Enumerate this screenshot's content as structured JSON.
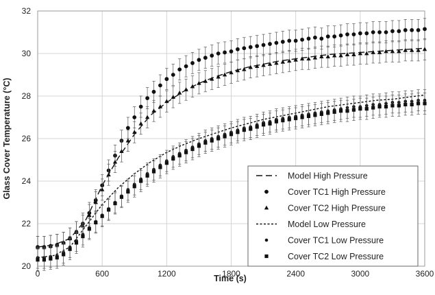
{
  "chart_data": {
    "type": "scatter",
    "xlabel": "Time (s)",
    "ylabel": "Glass Cover Temperature (°C)",
    "xlim": [
      0,
      3600
    ],
    "ylim": [
      20,
      32
    ],
    "xticks": [
      0,
      600,
      1200,
      1800,
      2400,
      3000,
      3600
    ],
    "yticks": [
      20,
      22,
      24,
      26,
      28,
      30,
      32
    ],
    "grid": true,
    "legend_position": "bottom-right",
    "error_bar_halfwidth": 0.5,
    "series": [
      {
        "name": "Model High Pressure",
        "style": "long-dash-line",
        "x": [
          0,
          150,
          300,
          450,
          600,
          750,
          900,
          1050,
          1200,
          1350,
          1500,
          1650,
          1800,
          1950,
          2100,
          2250,
          2400,
          2550,
          2700,
          2850,
          3000,
          3150,
          3300,
          3450,
          3600
        ],
        "y": [
          20.9,
          21.0,
          21.3,
          22.2,
          23.8,
          25.1,
          26.2,
          27.1,
          27.7,
          28.2,
          28.6,
          28.9,
          29.15,
          29.35,
          29.5,
          29.65,
          29.75,
          29.85,
          29.95,
          30.0,
          30.05,
          30.1,
          30.15,
          30.2,
          30.25
        ]
      },
      {
        "name": "Cover TC1 High Pressure",
        "style": "circle",
        "x": [
          0,
          60,
          120,
          180,
          240,
          300,
          360,
          420,
          480,
          540,
          600,
          660,
          720,
          780,
          840,
          900,
          960,
          1020,
          1080,
          1140,
          1200,
          1260,
          1320,
          1380,
          1440,
          1500,
          1560,
          1620,
          1680,
          1740,
          1800,
          1860,
          1920,
          1980,
          2040,
          2100,
          2160,
          2220,
          2280,
          2340,
          2400,
          2460,
          2520,
          2580,
          2640,
          2700,
          2760,
          2820,
          2880,
          2940,
          3000,
          3060,
          3120,
          3180,
          3240,
          3300,
          3360,
          3420,
          3480,
          3540,
          3600
        ],
        "y": [
          20.9,
          20.9,
          20.95,
          21.0,
          21.1,
          21.3,
          21.6,
          22.0,
          22.5,
          23.1,
          23.8,
          24.5,
          25.2,
          25.9,
          26.5,
          27.0,
          27.5,
          27.9,
          28.2,
          28.5,
          28.8,
          29.0,
          29.25,
          29.4,
          29.55,
          29.7,
          29.8,
          29.9,
          30.0,
          30.05,
          30.1,
          30.2,
          30.25,
          30.3,
          30.35,
          30.4,
          30.45,
          30.5,
          30.55,
          30.6,
          30.6,
          30.65,
          30.7,
          30.75,
          30.7,
          30.8,
          30.8,
          30.85,
          30.9,
          30.9,
          30.95,
          30.95,
          31.0,
          31.0,
          31.0,
          31.05,
          31.05,
          31.1,
          31.1,
          31.1,
          31.15
        ]
      },
      {
        "name": "Cover TC2 High Pressure",
        "style": "triangle",
        "x": [
          0,
          60,
          120,
          180,
          240,
          300,
          360,
          420,
          480,
          540,
          600,
          660,
          720,
          780,
          840,
          900,
          960,
          1020,
          1080,
          1140,
          1200,
          1260,
          1320,
          1380,
          1440,
          1500,
          1560,
          1620,
          1680,
          1740,
          1800,
          1860,
          1920,
          1980,
          2040,
          2100,
          2160,
          2220,
          2280,
          2340,
          2400,
          2460,
          2520,
          2580,
          2640,
          2700,
          2760,
          2820,
          2880,
          2940,
          3000,
          3060,
          3120,
          3180,
          3240,
          3300,
          3360,
          3420,
          3480,
          3540,
          3600
        ],
        "y": [
          20.9,
          20.9,
          20.95,
          21.0,
          21.1,
          21.3,
          21.6,
          21.9,
          22.4,
          23.0,
          23.6,
          24.3,
          24.9,
          25.4,
          25.9,
          26.3,
          26.7,
          27.0,
          27.3,
          27.5,
          27.75,
          27.95,
          28.15,
          28.3,
          28.45,
          28.6,
          28.7,
          28.8,
          28.9,
          29.0,
          29.1,
          29.2,
          29.25,
          29.35,
          29.4,
          29.45,
          29.5,
          29.55,
          29.6,
          29.65,
          29.7,
          29.75,
          29.75,
          29.8,
          29.85,
          29.85,
          29.9,
          29.9,
          29.95,
          29.95,
          30.0,
          30.0,
          30.05,
          30.05,
          30.1,
          30.1,
          30.1,
          30.15,
          30.15,
          30.15,
          30.2
        ]
      },
      {
        "name": "Model Low Pressure",
        "style": "short-dash-line",
        "x": [
          0,
          150,
          300,
          450,
          600,
          750,
          900,
          1050,
          1200,
          1350,
          1500,
          1650,
          1800,
          1950,
          2100,
          2250,
          2400,
          2550,
          2700,
          2850,
          3000,
          3150,
          3300,
          3450,
          3600
        ],
        "y": [
          20.4,
          20.5,
          20.9,
          21.9,
          22.9,
          23.7,
          24.35,
          24.9,
          25.35,
          25.7,
          26.0,
          26.25,
          26.5,
          26.7,
          26.9,
          27.05,
          27.2,
          27.35,
          27.5,
          27.6,
          27.7,
          27.8,
          27.85,
          27.95,
          28.05
        ]
      },
      {
        "name": "Cover TC1 Low Pressure",
        "style": "small-circle",
        "x": [
          0,
          60,
          120,
          180,
          240,
          300,
          360,
          420,
          480,
          540,
          600,
          660,
          720,
          780,
          840,
          900,
          960,
          1020,
          1080,
          1140,
          1200,
          1260,
          1320,
          1380,
          1440,
          1500,
          1560,
          1620,
          1680,
          1740,
          1800,
          1860,
          1920,
          1980,
          2040,
          2100,
          2160,
          2220,
          2280,
          2340,
          2400,
          2460,
          2520,
          2580,
          2640,
          2700,
          2760,
          2820,
          2880,
          2940,
          3000,
          3060,
          3120,
          3180,
          3240,
          3300,
          3360,
          3420,
          3480,
          3540,
          3600
        ],
        "y": [
          20.4,
          20.4,
          20.45,
          20.5,
          20.65,
          20.9,
          21.2,
          21.5,
          21.8,
          22.1,
          22.4,
          22.7,
          23.0,
          23.3,
          23.6,
          23.85,
          24.1,
          24.35,
          24.55,
          24.75,
          24.95,
          25.15,
          25.3,
          25.45,
          25.6,
          25.75,
          25.9,
          26.0,
          26.1,
          26.2,
          26.3,
          26.4,
          26.5,
          26.55,
          26.65,
          26.75,
          26.8,
          26.9,
          26.95,
          27.0,
          27.05,
          27.1,
          27.15,
          27.2,
          27.25,
          27.3,
          27.35,
          27.4,
          27.45,
          27.5,
          27.5,
          27.55,
          27.6,
          27.6,
          27.65,
          27.7,
          27.7,
          27.75,
          27.75,
          27.8,
          27.8
        ]
      },
      {
        "name": "Cover TC2 Low Pressure",
        "style": "square",
        "x": [
          0,
          60,
          120,
          180,
          240,
          300,
          360,
          420,
          480,
          540,
          600,
          660,
          720,
          780,
          840,
          900,
          960,
          1020,
          1080,
          1140,
          1200,
          1260,
          1320,
          1380,
          1440,
          1500,
          1560,
          1620,
          1680,
          1740,
          1800,
          1860,
          1920,
          1980,
          2040,
          2100,
          2160,
          2220,
          2280,
          2340,
          2400,
          2460,
          2520,
          2580,
          2640,
          2700,
          2760,
          2820,
          2880,
          2940,
          3000,
          3060,
          3120,
          3180,
          3240,
          3300,
          3360,
          3420,
          3480,
          3540,
          3600
        ],
        "y": [
          20.3,
          20.3,
          20.35,
          20.4,
          20.55,
          20.8,
          21.1,
          21.4,
          21.75,
          22.05,
          22.35,
          22.65,
          22.95,
          23.25,
          23.5,
          23.75,
          24.0,
          24.25,
          24.45,
          24.65,
          24.85,
          25.05,
          25.2,
          25.35,
          25.5,
          25.65,
          25.8,
          25.9,
          26.0,
          26.1,
          26.2,
          26.3,
          26.4,
          26.45,
          26.55,
          26.65,
          26.7,
          26.8,
          26.85,
          26.9,
          26.95,
          27.0,
          27.05,
          27.1,
          27.15,
          27.2,
          27.25,
          27.3,
          27.3,
          27.35,
          27.4,
          27.4,
          27.45,
          27.5,
          27.5,
          27.55,
          27.55,
          27.6,
          27.6,
          27.65,
          27.65
        ]
      }
    ]
  }
}
